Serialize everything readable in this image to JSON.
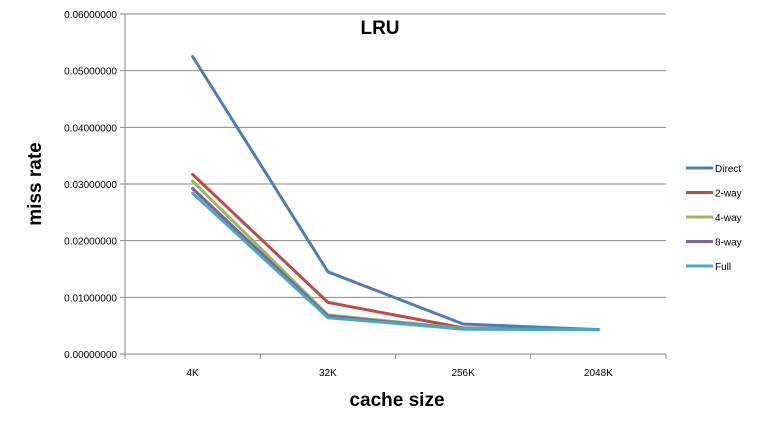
{
  "chart_data": {
    "type": "line",
    "title": "LRU",
    "xlabel": "cache size",
    "ylabel": "miss rate",
    "categories": [
      "4K",
      "32K",
      "256K",
      "2048K"
    ],
    "ylim": [
      0,
      0.06
    ],
    "yticks": [
      "0.00000000",
      "0.01000000",
      "0.02000000",
      "0.03000000",
      "0.04000000",
      "0.05000000",
      "0.06000000"
    ],
    "grid": true,
    "legend_position": "right",
    "series": [
      {
        "name": "Direct",
        "color": "#4a7ebb",
        "values": [
          0.0525,
          0.0145,
          0.0053,
          0.0043
        ]
      },
      {
        "name": "2-way",
        "color": "#be4b48",
        "values": [
          0.0317,
          0.0091,
          0.0046,
          0.0043
        ]
      },
      {
        "name": "4-way",
        "color": "#98b954",
        "values": [
          0.0305,
          0.0069,
          0.0045,
          0.0043
        ]
      },
      {
        "name": "8-way",
        "color": "#7d60a0",
        "values": [
          0.0292,
          0.0067,
          0.0044,
          0.0043
        ]
      },
      {
        "name": "Full",
        "color": "#46aac5",
        "values": [
          0.0284,
          0.0064,
          0.0044,
          0.0043
        ]
      }
    ]
  }
}
